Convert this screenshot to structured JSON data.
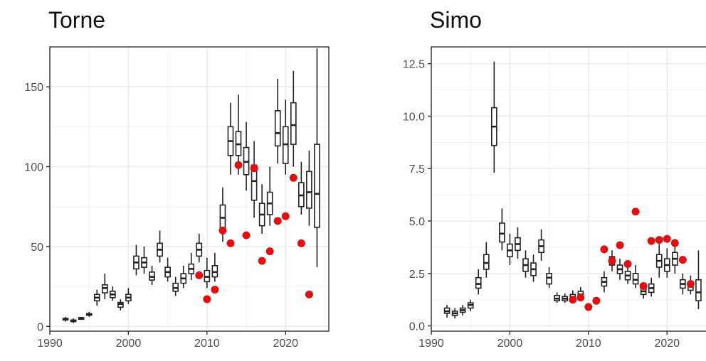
{
  "chart_data": [
    {
      "type": "box",
      "title": "Torne",
      "xlim": [
        1990,
        2025.5
      ],
      "ylim": [
        -3,
        175
      ],
      "x_ticks": [
        1990,
        2000,
        2010,
        2020
      ],
      "y_ticks": [
        0,
        50,
        100,
        150
      ],
      "grid": true,
      "colors": {
        "box": "#222222",
        "point": "#e01010",
        "grid": "#ebebeb",
        "border": "#333333"
      },
      "boxes": [
        {
          "x": 1992,
          "whisker_low": 3,
          "q1": 4,
          "median": 4.5,
          "q3": 5,
          "whisker_high": 6
        },
        {
          "x": 1993,
          "whisker_low": 2,
          "q1": 3,
          "median": 3.5,
          "q3": 4,
          "whisker_high": 5
        },
        {
          "x": 1994,
          "whisker_low": 4,
          "q1": 4.5,
          "median": 5,
          "q3": 5.5,
          "whisker_high": 6
        },
        {
          "x": 1995,
          "whisker_low": 6,
          "q1": 7,
          "median": 7.5,
          "q3": 8,
          "whisker_high": 9
        },
        {
          "x": 1996,
          "whisker_low": 13,
          "q1": 16,
          "median": 18,
          "q3": 20,
          "whisker_high": 23
        },
        {
          "x": 1997,
          "whisker_low": 17,
          "q1": 21,
          "median": 24,
          "q3": 26,
          "whisker_high": 33
        },
        {
          "x": 1998,
          "whisker_low": 16,
          "q1": 18,
          "median": 20,
          "q3": 22,
          "whisker_high": 25
        },
        {
          "x": 1999,
          "whisker_low": 10,
          "q1": 12,
          "median": 14,
          "q3": 15,
          "whisker_high": 17
        },
        {
          "x": 2000,
          "whisker_low": 14,
          "q1": 16,
          "median": 18,
          "q3": 20,
          "whisker_high": 24
        },
        {
          "x": 2001,
          "whisker_low": 32,
          "q1": 36,
          "median": 40,
          "q3": 44,
          "whisker_high": 51
        },
        {
          "x": 2002,
          "whisker_low": 33,
          "q1": 37,
          "median": 40,
          "q3": 43,
          "whisker_high": 50
        },
        {
          "x": 2003,
          "whisker_low": 26,
          "q1": 29,
          "median": 31,
          "q3": 34,
          "whisker_high": 38
        },
        {
          "x": 2004,
          "whisker_low": 40,
          "q1": 44,
          "median": 48,
          "q3": 52,
          "whisker_high": 60
        },
        {
          "x": 2005,
          "whisker_low": 28,
          "q1": 31,
          "median": 34,
          "q3": 37,
          "whisker_high": 43
        },
        {
          "x": 2006,
          "whisker_low": 19,
          "q1": 22,
          "median": 24,
          "q3": 27,
          "whisker_high": 31
        },
        {
          "x": 2007,
          "whisker_low": 24,
          "q1": 27,
          "median": 30,
          "q3": 33,
          "whisker_high": 38
        },
        {
          "x": 2008,
          "whisker_low": 29,
          "q1": 33,
          "median": 36,
          "q3": 39,
          "whisker_high": 46
        },
        {
          "x": 2009,
          "whisker_low": 40,
          "q1": 44,
          "median": 48,
          "q3": 52,
          "whisker_high": 58
        },
        {
          "x": 2010,
          "whisker_low": 24,
          "q1": 28,
          "median": 31,
          "q3": 35,
          "whisker_high": 43
        },
        {
          "x": 2011,
          "whisker_low": 28,
          "q1": 31,
          "median": 34,
          "q3": 38,
          "whisker_high": 46
        },
        {
          "x": 2012,
          "whisker_low": 53,
          "q1": 62,
          "median": 68,
          "q3": 76,
          "whisker_high": 87
        },
        {
          "x": 2013,
          "whisker_low": 95,
          "q1": 107,
          "median": 116,
          "q3": 125,
          "whisker_high": 140
        },
        {
          "x": 2014,
          "whisker_low": 95,
          "q1": 107,
          "median": 114,
          "q3": 122,
          "whisker_high": 145
        },
        {
          "x": 2015,
          "whisker_low": 85,
          "q1": 95,
          "median": 103,
          "q3": 112,
          "whisker_high": 128
        },
        {
          "x": 2016,
          "whisker_low": 68,
          "q1": 79,
          "median": 91,
          "q3": 101,
          "whisker_high": 116
        },
        {
          "x": 2017,
          "whisker_low": 58,
          "q1": 63,
          "median": 70,
          "q3": 77,
          "whisker_high": 89
        },
        {
          "x": 2018,
          "whisker_low": 63,
          "q1": 70,
          "median": 77,
          "q3": 84,
          "whisker_high": 100
        },
        {
          "x": 2019,
          "whisker_low": 102,
          "q1": 113,
          "median": 121,
          "q3": 135,
          "whisker_high": 155
        },
        {
          "x": 2020,
          "whisker_low": 95,
          "q1": 102,
          "median": 114,
          "q3": 125,
          "whisker_high": 142
        },
        {
          "x": 2021,
          "whisker_low": 100,
          "q1": 114,
          "median": 126,
          "q3": 140,
          "whisker_high": 160
        },
        {
          "x": 2022,
          "whisker_low": 70,
          "q1": 75,
          "median": 82,
          "q3": 90,
          "whisker_high": 103
        },
        {
          "x": 2023,
          "whisker_low": 63,
          "q1": 74,
          "median": 84,
          "q3": 97,
          "whisker_high": 110
        },
        {
          "x": 2024,
          "whisker_low": 37,
          "q1": 62,
          "median": 83,
          "q3": 114,
          "whisker_high": 174
        }
      ],
      "points": [
        {
          "x": 2009,
          "y": 32
        },
        {
          "x": 2010,
          "y": 17
        },
        {
          "x": 2011,
          "y": 23
        },
        {
          "x": 2012,
          "y": 60
        },
        {
          "x": 2013,
          "y": 52
        },
        {
          "x": 2014,
          "y": 101
        },
        {
          "x": 2015,
          "y": 57
        },
        {
          "x": 2016,
          "y": 99
        },
        {
          "x": 2017,
          "y": 41
        },
        {
          "x": 2018,
          "y": 47
        },
        {
          "x": 2019,
          "y": 66
        },
        {
          "x": 2020,
          "y": 69
        },
        {
          "x": 2021,
          "y": 93
        },
        {
          "x": 2022,
          "y": 52
        },
        {
          "x": 2023,
          "y": 20
        }
      ]
    },
    {
      "type": "box",
      "title": "Simo",
      "xlim": [
        1990,
        2025.5
      ],
      "ylim": [
        -0.25,
        13.3
      ],
      "x_ticks": [
        1990,
        2000,
        2010,
        2020
      ],
      "y_ticks": [
        0.0,
        2.5,
        5.0,
        7.5,
        10.0,
        12.5
      ],
      "y_tick_labels": [
        "0.0",
        "2.5",
        "5.0",
        "7.5",
        "10.0",
        "12.5"
      ],
      "grid": true,
      "colors": {
        "box": "#222222",
        "point": "#e01010",
        "grid": "#ebebeb",
        "border": "#333333"
      },
      "boxes": [
        {
          "x": 1992,
          "whisker_low": 0.4,
          "q1": 0.6,
          "median": 0.7,
          "q3": 0.85,
          "whisker_high": 1.0
        },
        {
          "x": 1993,
          "whisker_low": 0.35,
          "q1": 0.5,
          "median": 0.6,
          "q3": 0.7,
          "whisker_high": 0.85
        },
        {
          "x": 1994,
          "whisker_low": 0.5,
          "q1": 0.65,
          "median": 0.75,
          "q3": 0.85,
          "whisker_high": 1.0
        },
        {
          "x": 1995,
          "whisker_low": 0.7,
          "q1": 0.85,
          "median": 1.0,
          "q3": 1.1,
          "whisker_high": 1.25
        },
        {
          "x": 1996,
          "whisker_low": 1.5,
          "q1": 1.8,
          "median": 2.0,
          "q3": 2.3,
          "whisker_high": 2.7
        },
        {
          "x": 1997,
          "whisker_low": 2.3,
          "q1": 2.7,
          "median": 3.0,
          "q3": 3.4,
          "whisker_high": 4.0
        },
        {
          "x": 1998,
          "whisker_low": 7.3,
          "q1": 8.6,
          "median": 9.5,
          "q3": 10.4,
          "whisker_high": 12.6
        },
        {
          "x": 1999,
          "whisker_low": 3.6,
          "q1": 4.0,
          "median": 4.4,
          "q3": 4.9,
          "whisker_high": 5.6
        },
        {
          "x": 2000,
          "whisker_low": 2.9,
          "q1": 3.3,
          "median": 3.6,
          "q3": 3.9,
          "whisker_high": 4.4
        },
        {
          "x": 2001,
          "whisker_low": 3.2,
          "q1": 3.6,
          "median": 3.9,
          "q3": 4.2,
          "whisker_high": 4.7
        },
        {
          "x": 2002,
          "whisker_low": 2.3,
          "q1": 2.6,
          "median": 2.9,
          "q3": 3.2,
          "whisker_high": 3.6
        },
        {
          "x": 2003,
          "whisker_low": 2.1,
          "q1": 2.4,
          "median": 2.7,
          "q3": 3.0,
          "whisker_high": 3.4
        },
        {
          "x": 2004,
          "whisker_low": 3.1,
          "q1": 3.5,
          "median": 3.8,
          "q3": 4.1,
          "whisker_high": 4.6
        },
        {
          "x": 2005,
          "whisker_low": 1.8,
          "q1": 2.0,
          "median": 2.3,
          "q3": 2.5,
          "whisker_high": 2.8
        },
        {
          "x": 2006,
          "whisker_low": 1.1,
          "q1": 1.2,
          "median": 1.3,
          "q3": 1.45,
          "whisker_high": 1.6
        },
        {
          "x": 2007,
          "whisker_low": 1.1,
          "q1": 1.2,
          "median": 1.3,
          "q3": 1.4,
          "whisker_high": 1.55
        },
        {
          "x": 2008,
          "whisker_low": 1.1,
          "q1": 1.2,
          "median": 1.35,
          "q3": 1.5,
          "whisker_high": 1.7
        },
        {
          "x": 2009,
          "whisker_low": 1.2,
          "q1": 1.35,
          "median": 1.5,
          "q3": 1.65,
          "whisker_high": 1.85
        },
        {
          "x": 2012,
          "whisker_low": 1.6,
          "q1": 1.9,
          "median": 2.1,
          "q3": 2.3,
          "whisker_high": 2.6
        },
        {
          "x": 2013,
          "whisker_low": 2.6,
          "q1": 2.9,
          "median": 3.1,
          "q3": 3.3,
          "whisker_high": 3.6
        },
        {
          "x": 2014,
          "whisker_low": 2.2,
          "q1": 2.5,
          "median": 2.7,
          "q3": 2.9,
          "whisker_high": 3.2
        },
        {
          "x": 2015,
          "whisker_low": 2.0,
          "q1": 2.2,
          "median": 2.4,
          "q3": 2.6,
          "whisker_high": 3.0
        },
        {
          "x": 2016,
          "whisker_low": 1.8,
          "q1": 2.0,
          "median": 2.2,
          "q3": 2.5,
          "whisker_high": 2.9
        },
        {
          "x": 2017,
          "whisker_low": 1.3,
          "q1": 1.5,
          "median": 1.65,
          "q3": 1.8,
          "whisker_high": 2.0
        },
        {
          "x": 2018,
          "whisker_low": 1.4,
          "q1": 1.6,
          "median": 1.8,
          "q3": 2.0,
          "whisker_high": 2.3
        },
        {
          "x": 2019,
          "whisker_low": 2.3,
          "q1": 2.8,
          "median": 3.1,
          "q3": 3.4,
          "whisker_high": 3.9
        },
        {
          "x": 2020,
          "whisker_low": 2.3,
          "q1": 2.6,
          "median": 2.9,
          "q3": 3.2,
          "whisker_high": 3.7
        },
        {
          "x": 2021,
          "whisker_low": 2.5,
          "q1": 2.9,
          "median": 3.2,
          "q3": 3.5,
          "whisker_high": 4.0
        },
        {
          "x": 2022,
          "whisker_low": 1.5,
          "q1": 1.8,
          "median": 2.0,
          "q3": 2.2,
          "whisker_high": 2.5
        },
        {
          "x": 2023,
          "whisker_low": 1.5,
          "q1": 1.7,
          "median": 1.9,
          "q3": 2.1,
          "whisker_high": 2.4
        },
        {
          "x": 2024,
          "whisker_low": 0.8,
          "q1": 1.2,
          "median": 1.6,
          "q3": 2.2,
          "whisker_high": 3.6
        }
      ],
      "points": [
        {
          "x": 2008,
          "y": 1.25
        },
        {
          "x": 2009,
          "y": 1.35
        },
        {
          "x": 2010,
          "y": 0.9
        },
        {
          "x": 2011,
          "y": 1.2
        },
        {
          "x": 2012,
          "y": 3.65
        },
        {
          "x": 2013,
          "y": 3.1
        },
        {
          "x": 2014,
          "y": 3.85
        },
        {
          "x": 2015,
          "y": 2.95
        },
        {
          "x": 2016,
          "y": 5.45
        },
        {
          "x": 2017,
          "y": 1.9
        },
        {
          "x": 2018,
          "y": 4.05
        },
        {
          "x": 2019,
          "y": 4.1
        },
        {
          "x": 2020,
          "y": 4.15
        },
        {
          "x": 2021,
          "y": 3.95
        },
        {
          "x": 2022,
          "y": 3.15
        },
        {
          "x": 2023,
          "y": 2.0
        }
      ]
    }
  ]
}
